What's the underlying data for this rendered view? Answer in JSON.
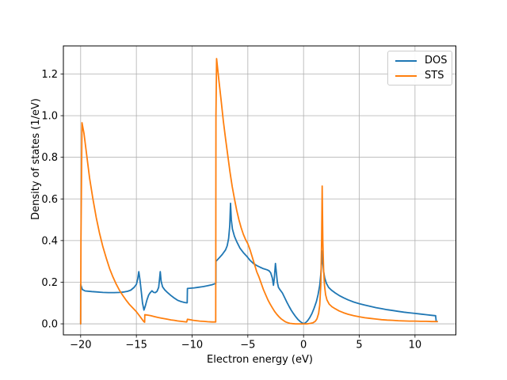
{
  "chart_data": {
    "type": "line",
    "title": "",
    "xlabel": "Electron energy (eV)",
    "ylabel": "Density of states (1/eV)",
    "xlim": [
      -21.55,
      13.67
    ],
    "ylim": [
      -0.053,
      1.335
    ],
    "xticks": [
      -20,
      -15,
      -10,
      -5,
      0,
      5,
      10
    ],
    "xtick_labels": [
      "−20",
      "−15",
      "−10",
      "−5",
      "0",
      "5",
      "10"
    ],
    "yticks": [
      0.0,
      0.2,
      0.4,
      0.6,
      0.8,
      1.0,
      1.2
    ],
    "ytick_labels": [
      "0.0",
      "0.2",
      "0.4",
      "0.6",
      "0.8",
      "1.0",
      "1.2"
    ],
    "grid": true,
    "grid_color": "#b0b0b0",
    "frame_color": "#000000",
    "legend_position": "upper right",
    "series": [
      {
        "name": "DOS",
        "color": "#1f77b4",
        "points": [
          [
            -20,
            0
          ],
          [
            -20,
            0.19
          ],
          [
            -19.85,
            0.165
          ],
          [
            -19.6,
            0.158
          ],
          [
            -19,
            0.155
          ],
          [
            -18.5,
            0.153
          ],
          [
            -18,
            0.151
          ],
          [
            -17.5,
            0.15
          ],
          [
            -17,
            0.15
          ],
          [
            -16.5,
            0.151
          ],
          [
            -16.1,
            0.153
          ],
          [
            -15.8,
            0.156
          ],
          [
            -15.5,
            0.162
          ],
          [
            -15.2,
            0.175
          ],
          [
            -15,
            0.19
          ],
          [
            -14.88,
            0.215
          ],
          [
            -14.78,
            0.251
          ],
          [
            -14.68,
            0.21
          ],
          [
            -14.55,
            0.15
          ],
          [
            -14.45,
            0.1
          ],
          [
            -14.32,
            0.066
          ],
          [
            -14.2,
            0.085
          ],
          [
            -14.05,
            0.115
          ],
          [
            -13.9,
            0.138
          ],
          [
            -13.78,
            0.148
          ],
          [
            -13.6,
            0.159
          ],
          [
            -13.45,
            0.151
          ],
          [
            -13.3,
            0.15
          ],
          [
            -13.15,
            0.156
          ],
          [
            -13,
            0.175
          ],
          [
            -12.92,
            0.215
          ],
          [
            -12.86,
            0.251
          ],
          [
            -12.78,
            0.205
          ],
          [
            -12.65,
            0.178
          ],
          [
            -12.45,
            0.163
          ],
          [
            -12.2,
            0.15
          ],
          [
            -11.9,
            0.136
          ],
          [
            -11.6,
            0.124
          ],
          [
            -11.3,
            0.113
          ],
          [
            -11,
            0.107
          ],
          [
            -10.7,
            0.103
          ],
          [
            -10.5,
            0.101
          ],
          [
            -10.44,
            0.101
          ],
          [
            -10.42,
            0.17
          ],
          [
            -10.2,
            0.171
          ],
          [
            -9.8,
            0.173
          ],
          [
            -9.4,
            0.176
          ],
          [
            -9,
            0.179
          ],
          [
            -8.6,
            0.183
          ],
          [
            -8.2,
            0.188
          ],
          [
            -7.95,
            0.193
          ],
          [
            -7.87,
            0.195
          ],
          [
            -7.86,
            0.3
          ],
          [
            -7.6,
            0.315
          ],
          [
            -7.3,
            0.333
          ],
          [
            -7,
            0.355
          ],
          [
            -6.85,
            0.375
          ],
          [
            -6.72,
            0.41
          ],
          [
            -6.62,
            0.47
          ],
          [
            -6.55,
            0.579
          ],
          [
            -6.48,
            0.5
          ],
          [
            -6.38,
            0.455
          ],
          [
            -6.2,
            0.42
          ],
          [
            -6,
            0.395
          ],
          [
            -5.7,
            0.363
          ],
          [
            -5.4,
            0.342
          ],
          [
            -5.1,
            0.325
          ],
          [
            -4.8,
            0.305
          ],
          [
            -4.5,
            0.29
          ],
          [
            -4.2,
            0.28
          ],
          [
            -3.9,
            0.272
          ],
          [
            -3.6,
            0.265
          ],
          [
            -3.3,
            0.26
          ],
          [
            -3.1,
            0.255
          ],
          [
            -2.95,
            0.245
          ],
          [
            -2.8,
            0.22
          ],
          [
            -2.7,
            0.185
          ],
          [
            -2.62,
            0.22
          ],
          [
            -2.52,
            0.29
          ],
          [
            -2.44,
            0.245
          ],
          [
            -2.35,
            0.2
          ],
          [
            -2.25,
            0.175
          ],
          [
            -2.1,
            0.163
          ],
          [
            -1.9,
            0.148
          ],
          [
            -1.7,
            0.126
          ],
          [
            -1.5,
            0.104
          ],
          [
            -1.3,
            0.084
          ],
          [
            -1.1,
            0.065
          ],
          [
            -0.9,
            0.049
          ],
          [
            -0.7,
            0.034
          ],
          [
            -0.5,
            0.021
          ],
          [
            -0.3,
            0.011
          ],
          [
            -0.15,
            0.005
          ],
          [
            0,
            0.001
          ],
          [
            0.15,
            0.004
          ],
          [
            0.35,
            0.014
          ],
          [
            0.55,
            0.029
          ],
          [
            0.75,
            0.049
          ],
          [
            0.95,
            0.075
          ],
          [
            1.15,
            0.107
          ],
          [
            1.3,
            0.14
          ],
          [
            1.45,
            0.185
          ],
          [
            1.55,
            0.24
          ],
          [
            1.62,
            0.3
          ],
          [
            1.66,
            0.35
          ],
          [
            1.72,
            0.3
          ],
          [
            1.8,
            0.252
          ],
          [
            1.9,
            0.22
          ],
          [
            2.05,
            0.195
          ],
          [
            2.25,
            0.175
          ],
          [
            2.5,
            0.162
          ],
          [
            2.85,
            0.148
          ],
          [
            3.2,
            0.136
          ],
          [
            3.6,
            0.125
          ],
          [
            4,
            0.115
          ],
          [
            4.5,
            0.105
          ],
          [
            5,
            0.097
          ],
          [
            5.5,
            0.09
          ],
          [
            6,
            0.084
          ],
          [
            6.5,
            0.078
          ],
          [
            7,
            0.073
          ],
          [
            7.5,
            0.068
          ],
          [
            8,
            0.064
          ],
          [
            8.5,
            0.06
          ],
          [
            9,
            0.056
          ],
          [
            9.5,
            0.053
          ],
          [
            10,
            0.05
          ],
          [
            10.5,
            0.047
          ],
          [
            11,
            0.044
          ],
          [
            11.5,
            0.041
          ],
          [
            11.85,
            0.039
          ],
          [
            11.9,
            0.012
          ],
          [
            12,
            0.011
          ]
        ]
      },
      {
        "name": "STS",
        "color": "#ff7f0e",
        "points": [
          [
            -20,
            0
          ],
          [
            -19.97,
            0.4
          ],
          [
            -19.88,
            0.966
          ],
          [
            -19.7,
            0.915
          ],
          [
            -19.5,
            0.83
          ],
          [
            -19.2,
            0.7
          ],
          [
            -18.9,
            0.6
          ],
          [
            -18.6,
            0.51
          ],
          [
            -18.3,
            0.434
          ],
          [
            -18,
            0.37
          ],
          [
            -17.7,
            0.315
          ],
          [
            -17.4,
            0.265
          ],
          [
            -17.1,
            0.225
          ],
          [
            -16.8,
            0.19
          ],
          [
            -16.5,
            0.16
          ],
          [
            -16.2,
            0.135
          ],
          [
            -15.9,
            0.112
          ],
          [
            -15.6,
            0.092
          ],
          [
            -15.3,
            0.075
          ],
          [
            -15,
            0.058
          ],
          [
            -14.8,
            0.044
          ],
          [
            -14.6,
            0.03
          ],
          [
            -14.45,
            0.019
          ],
          [
            -14.32,
            0.01
          ],
          [
            -14.26,
            0.008
          ],
          [
            -14.24,
            0.044
          ],
          [
            -14,
            0.042
          ],
          [
            -13.7,
            0.039
          ],
          [
            -13.4,
            0.035
          ],
          [
            -13.1,
            0.031
          ],
          [
            -12.8,
            0.028
          ],
          [
            -12.5,
            0.025
          ],
          [
            -12.2,
            0.022
          ],
          [
            -11.9,
            0.019
          ],
          [
            -11.6,
            0.017
          ],
          [
            -11.3,
            0.014
          ],
          [
            -11,
            0.012
          ],
          [
            -10.7,
            0.01
          ],
          [
            -10.48,
            0.009
          ],
          [
            -10.42,
            0.022
          ],
          [
            -10.2,
            0.02
          ],
          [
            -9.9,
            0.017
          ],
          [
            -9.6,
            0.015
          ],
          [
            -9.3,
            0.013
          ],
          [
            -9,
            0.012
          ],
          [
            -8.6,
            0.01
          ],
          [
            -8.2,
            0.009
          ],
          [
            -7.88,
            0.009
          ],
          [
            -7.86,
            1.0
          ],
          [
            -7.8,
            1.274
          ],
          [
            -7.6,
            1.17
          ],
          [
            -7.4,
            1.075
          ],
          [
            -7.2,
            0.975
          ],
          [
            -7,
            0.89
          ],
          [
            -6.8,
            0.81
          ],
          [
            -6.6,
            0.73
          ],
          [
            -6.4,
            0.66
          ],
          [
            -6.2,
            0.6
          ],
          [
            -6,
            0.545
          ],
          [
            -5.8,
            0.5
          ],
          [
            -5.6,
            0.462
          ],
          [
            -5.4,
            0.43
          ],
          [
            -5.2,
            0.405
          ],
          [
            -5,
            0.385
          ],
          [
            -4.8,
            0.355
          ],
          [
            -4.6,
            0.32
          ],
          [
            -4.4,
            0.285
          ],
          [
            -4.2,
            0.25
          ],
          [
            -4,
            0.225
          ],
          [
            -3.8,
            0.195
          ],
          [
            -3.6,
            0.165
          ],
          [
            -3.4,
            0.14
          ],
          [
            -3.2,
            0.115
          ],
          [
            -3,
            0.095
          ],
          [
            -2.8,
            0.077
          ],
          [
            -2.6,
            0.06
          ],
          [
            -2.4,
            0.046
          ],
          [
            -2.2,
            0.034
          ],
          [
            -2,
            0.024
          ],
          [
            -1.8,
            0.016
          ],
          [
            -1.6,
            0.009
          ],
          [
            -1.4,
            0.005
          ],
          [
            -1.2,
            0.002
          ],
          [
            -1,
            0.001
          ],
          [
            -0.7,
            0
          ],
          [
            -0.3,
            0
          ],
          [
            0,
            0
          ],
          [
            0.3,
            0
          ],
          [
            0.6,
            0.002
          ],
          [
            0.85,
            0.005
          ],
          [
            1.05,
            0.012
          ],
          [
            1.2,
            0.024
          ],
          [
            1.35,
            0.05
          ],
          [
            1.45,
            0.09
          ],
          [
            1.55,
            0.19
          ],
          [
            1.62,
            0.4
          ],
          [
            1.67,
            0.662
          ],
          [
            1.73,
            0.4
          ],
          [
            1.8,
            0.26
          ],
          [
            1.88,
            0.185
          ],
          [
            1.98,
            0.14
          ],
          [
            2.1,
            0.115
          ],
          [
            2.3,
            0.095
          ],
          [
            2.55,
            0.082
          ],
          [
            2.85,
            0.072
          ],
          [
            3.2,
            0.062
          ],
          [
            3.6,
            0.053
          ],
          [
            4,
            0.046
          ],
          [
            4.5,
            0.039
          ],
          [
            5,
            0.034
          ],
          [
            5.5,
            0.029
          ],
          [
            6,
            0.026
          ],
          [
            6.5,
            0.023
          ],
          [
            7,
            0.02
          ],
          [
            7.5,
            0.018
          ],
          [
            8,
            0.017
          ],
          [
            8.5,
            0.015
          ],
          [
            9,
            0.014
          ],
          [
            9.5,
            0.013
          ],
          [
            10,
            0.013
          ],
          [
            10.5,
            0.012
          ],
          [
            11,
            0.012
          ],
          [
            11.5,
            0.011
          ],
          [
            12,
            0.011
          ]
        ]
      }
    ]
  }
}
